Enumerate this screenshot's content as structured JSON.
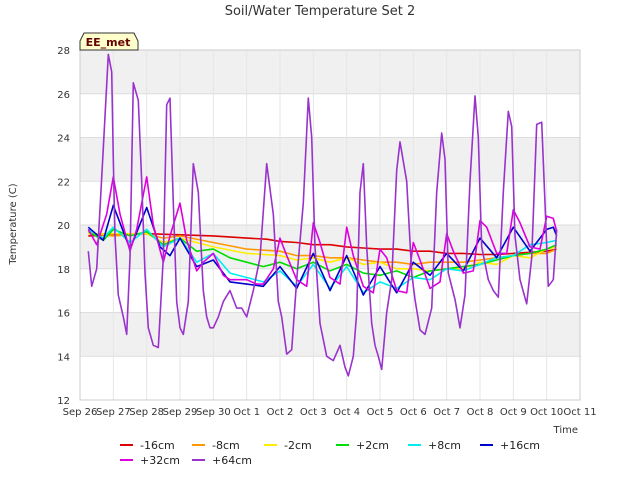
{
  "chart_data": {
    "type": "line",
    "title": "Soil/Water Temperature Set 2",
    "xlabel": "Time",
    "ylabel": "Temperature (C)",
    "annotation": "EE_met",
    "ylim": [
      12,
      28
    ],
    "yticks": [
      12,
      14,
      16,
      18,
      20,
      22,
      24,
      26,
      28
    ],
    "xlim": [
      0,
      15
    ],
    "xticks": [
      {
        "x": 0,
        "label": "Sep 26"
      },
      {
        "x": 1,
        "label": "Sep 27"
      },
      {
        "x": 2,
        "label": "Sep 28"
      },
      {
        "x": 3,
        "label": "Sep 29"
      },
      {
        "x": 4,
        "label": "Sep 30"
      },
      {
        "x": 5,
        "label": "Oct 1"
      },
      {
        "x": 6,
        "label": "Oct 2"
      },
      {
        "x": 7,
        "label": "Oct 3"
      },
      {
        "x": 8,
        "label": "Oct 4"
      },
      {
        "x": 9,
        "label": "Oct 5"
      },
      {
        "x": 10,
        "label": "Oct 6"
      },
      {
        "x": 11,
        "label": "Oct 7"
      },
      {
        "x": 12,
        "label": "Oct 8"
      },
      {
        "x": 13,
        "label": "Oct 9"
      },
      {
        "x": 14,
        "label": "Oct 10"
      },
      {
        "x": 15,
        "label": "Oct 11"
      }
    ],
    "grid": true,
    "legend_position": "bottom",
    "series": [
      {
        "name": "-16cm",
        "color": "#dd0000",
        "x": [
          0.25,
          1,
          2,
          3,
          4,
          5,
          5.6,
          6,
          6.5,
          7,
          7.5,
          8,
          8.5,
          9,
          9.5,
          10,
          10.5,
          11,
          11.5,
          12,
          12.5,
          13,
          13.5,
          14,
          14.3
        ],
        "y": [
          19.5,
          19.55,
          19.6,
          19.55,
          19.5,
          19.4,
          19.35,
          19.25,
          19.2,
          19.1,
          19.1,
          19.0,
          18.95,
          18.9,
          18.9,
          18.8,
          18.8,
          18.7,
          18.7,
          18.65,
          18.65,
          18.7,
          18.75,
          18.8,
          18.9
        ]
      },
      {
        "name": "-8cm",
        "color": "#ff9900",
        "x": [
          0.25,
          1,
          2,
          2.5,
          3,
          4,
          5,
          6,
          6.5,
          7,
          7.5,
          8,
          8.5,
          9,
          9.5,
          10,
          10.5,
          11,
          11.5,
          12,
          12.5,
          13,
          13.5,
          14,
          14.3
        ],
        "y": [
          19.6,
          19.5,
          19.6,
          19.4,
          19.5,
          19.2,
          18.9,
          18.8,
          18.6,
          18.6,
          18.5,
          18.5,
          18.4,
          18.3,
          18.3,
          18.2,
          18.3,
          18.3,
          18.3,
          18.4,
          18.5,
          18.6,
          18.7,
          18.7,
          18.9
        ]
      },
      {
        "name": "-2cm",
        "color": "#ffee00",
        "x": [
          0.25,
          1,
          2,
          2.5,
          3,
          4,
          5,
          6,
          6.5,
          7,
          7.5,
          8,
          8.5,
          9,
          9.5,
          10,
          10.5,
          11,
          11.5,
          12,
          12.5,
          13,
          13.5,
          14,
          14.3
        ],
        "y": [
          19.6,
          19.6,
          19.6,
          19.2,
          19.4,
          19.0,
          18.7,
          18.6,
          18.4,
          18.5,
          18.3,
          18.5,
          18.2,
          18.3,
          18.0,
          18.0,
          17.9,
          18.0,
          18.0,
          18.3,
          18.2,
          18.6,
          18.5,
          18.9,
          19.0
        ]
      },
      {
        "name": "+2cm",
        "color": "#00dd00",
        "x": [
          0.25,
          0.7,
          1,
          1.5,
          2,
          2.5,
          3,
          3.5,
          4,
          4.5,
          5,
          5.5,
          6,
          6.5,
          7,
          7.5,
          8,
          8.5,
          9,
          9.5,
          10,
          10.5,
          11,
          11.5,
          12,
          12.5,
          13,
          13.5,
          14,
          14.3
        ],
        "y": [
          19.7,
          19.3,
          19.8,
          19.5,
          19.7,
          19.1,
          19.4,
          18.8,
          18.9,
          18.5,
          18.3,
          18.1,
          18.3,
          18.0,
          18.3,
          17.9,
          18.2,
          17.8,
          17.7,
          17.9,
          17.6,
          17.9,
          18.0,
          18.1,
          18.2,
          18.4,
          18.6,
          18.7,
          18.9,
          19.1
        ]
      },
      {
        "name": "+8cm",
        "color": "#00eeee",
        "x": [
          0.25,
          0.7,
          1,
          1.5,
          2,
          2.5,
          3,
          3.5,
          4,
          4.5,
          5,
          5.5,
          6,
          6.5,
          7,
          7.5,
          8,
          8.5,
          9,
          9.5,
          10,
          10.5,
          11,
          11.5,
          12,
          12.5,
          13,
          13.5,
          14,
          14.3
        ],
        "y": [
          19.8,
          19.4,
          19.9,
          19.2,
          19.8,
          19.0,
          19.4,
          18.3,
          18.7,
          17.8,
          17.6,
          17.4,
          17.9,
          17.2,
          18.2,
          17.1,
          18.1,
          16.9,
          17.4,
          17.1,
          17.6,
          17.5,
          18.0,
          17.9,
          18.2,
          18.5,
          18.6,
          19.1,
          19.2,
          19.3
        ]
      },
      {
        "name": "+16cm",
        "color": "#0000cc",
        "x": [
          0.25,
          0.7,
          1,
          1.5,
          2,
          2.4,
          2.7,
          3,
          3.5,
          4,
          4.5,
          5,
          5.5,
          6,
          6.5,
          7,
          7.5,
          8,
          8.5,
          9,
          9.5,
          10,
          10.5,
          11,
          11.5,
          12,
          12.5,
          13,
          13.5,
          14,
          14.2,
          14.3
        ],
        "y": [
          19.9,
          19.3,
          20.9,
          18.9,
          20.8,
          19.0,
          18.6,
          19.4,
          18.1,
          18.4,
          17.4,
          17.3,
          17.2,
          18.1,
          17.1,
          18.7,
          17.0,
          18.6,
          16.8,
          18.1,
          16.9,
          18.3,
          17.7,
          18.7,
          17.9,
          19.4,
          18.5,
          19.9,
          18.8,
          19.8,
          19.9,
          19.5
        ]
      },
      {
        "name": "+32cm",
        "color": "#dd00dd",
        "x": [
          0.25,
          0.5,
          0.8,
          1,
          1.2,
          1.5,
          1.7,
          2,
          2.2,
          2.5,
          2.7,
          3,
          3.2,
          3.5,
          3.7,
          4,
          4.3,
          4.5,
          5,
          5.3,
          5.5,
          5.8,
          6,
          6.2,
          6.5,
          6.8,
          7,
          7.2,
          7.5,
          7.8,
          8,
          8.2,
          8.5,
          8.8,
          9,
          9.2,
          9.5,
          9.8,
          10,
          10.2,
          10.5,
          10.8,
          11,
          11.2,
          11.5,
          11.8,
          12,
          12.2,
          12.5,
          12.8,
          13,
          13.2,
          13.5,
          13.8,
          14,
          14.2,
          14.3
        ],
        "y": [
          19.8,
          19.1,
          20.5,
          22.2,
          20.5,
          18.8,
          19.8,
          22.2,
          20.0,
          18.3,
          19.5,
          21.0,
          19.3,
          17.9,
          18.3,
          18.7,
          17.7,
          17.5,
          17.5,
          17.3,
          17.3,
          18.0,
          19.4,
          18.6,
          17.5,
          17.2,
          20.1,
          19.2,
          17.6,
          17.3,
          19.9,
          18.6,
          17.2,
          16.9,
          18.9,
          18.5,
          17.0,
          16.9,
          19.2,
          18.4,
          17.1,
          17.4,
          19.6,
          18.8,
          17.8,
          17.9,
          20.2,
          19.9,
          18.7,
          18.7,
          20.7,
          20.1,
          19.0,
          18.9,
          20.4,
          20.3,
          19.7
        ]
      },
      {
        "name": "+64cm",
        "color": "#9933cc",
        "x": [
          0.25,
          0.35,
          0.5,
          0.7,
          0.85,
          0.95,
          1.0,
          1.05,
          1.15,
          1.3,
          1.4,
          1.5,
          1.6,
          1.75,
          1.85,
          1.95,
          2.05,
          2.2,
          2.35,
          2.5,
          2.6,
          2.7,
          2.8,
          2.9,
          3.0,
          3.1,
          3.25,
          3.4,
          3.55,
          3.7,
          3.8,
          3.9,
          4.0,
          4.15,
          4.3,
          4.5,
          4.7,
          4.85,
          5.0,
          5.2,
          5.4,
          5.6,
          5.8,
          5.95,
          6.05,
          6.2,
          6.35,
          6.5,
          6.7,
          6.85,
          6.95,
          7.05,
          7.2,
          7.4,
          7.6,
          7.8,
          7.95,
          8.05,
          8.2,
          8.3,
          8.4,
          8.5,
          8.6,
          8.75,
          8.85,
          8.95,
          9.05,
          9.2,
          9.35,
          9.5,
          9.6,
          9.8,
          9.95,
          10.05,
          10.2,
          10.35,
          10.55,
          10.7,
          10.85,
          10.95,
          11.05,
          11.25,
          11.4,
          11.55,
          11.7,
          11.85,
          11.95,
          12.05,
          12.25,
          12.4,
          12.55,
          12.7,
          12.85,
          12.95,
          13.05,
          13.2,
          13.4,
          13.55,
          13.7,
          13.85,
          13.95,
          14.05,
          14.2,
          14.3
        ],
        "y": [
          18.8,
          17.2,
          18.0,
          23.5,
          27.8,
          27.0,
          23.0,
          19.5,
          16.8,
          15.8,
          15.0,
          18.5,
          26.5,
          25.7,
          22.0,
          17.8,
          15.3,
          14.5,
          14.4,
          18.5,
          25.5,
          25.8,
          21.0,
          16.5,
          15.3,
          15.0,
          16.5,
          22.8,
          21.5,
          17.0,
          15.8,
          15.3,
          15.3,
          15.8,
          16.5,
          17.0,
          16.2,
          16.2,
          15.8,
          17.0,
          18.5,
          22.8,
          20.5,
          16.5,
          15.8,
          14.1,
          14.3,
          17.5,
          21.0,
          25.8,
          24.0,
          19.0,
          15.5,
          14.0,
          13.8,
          14.5,
          13.5,
          13.1,
          14.0,
          16.0,
          21.5,
          22.8,
          19.0,
          15.5,
          14.5,
          14.0,
          13.4,
          16.0,
          17.5,
          22.5,
          23.8,
          22.0,
          17.8,
          16.6,
          15.2,
          15.0,
          16.2,
          21.5,
          24.2,
          23.0,
          17.8,
          16.6,
          15.3,
          16.8,
          22.0,
          25.9,
          24.0,
          19.0,
          17.5,
          17.0,
          16.7,
          21.5,
          25.2,
          24.5,
          19.5,
          17.5,
          16.4,
          18.5,
          24.6,
          24.7,
          21.0,
          17.2,
          17.5,
          19.8
        ]
      }
    ]
  }
}
